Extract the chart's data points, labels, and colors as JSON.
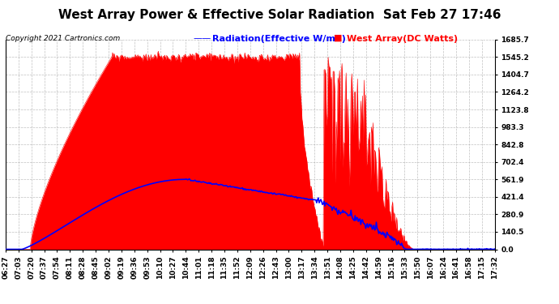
{
  "title": "West Array Power & Effective Solar Radiation  Sat Feb 27 17:46",
  "copyright": "Copyright 2021 Cartronics.com",
  "legend_radiation": "Radiation(Effective W/m2)",
  "legend_west": "West Array(DC Watts)",
  "ylabel_right_ticks": [
    0.0,
    140.5,
    280.9,
    421.4,
    561.9,
    702.4,
    842.8,
    983.3,
    1123.8,
    1264.2,
    1404.7,
    1545.2,
    1685.7
  ],
  "ymax": 1685.7,
  "ymin": 0.0,
  "background_color": "#ffffff",
  "plot_bg_color": "#ffffff",
  "grid_color": "#b0b0b0",
  "red_fill_color": "#ff0000",
  "blue_line_color": "#0000ff",
  "title_color": "#000000",
  "copyright_color": "#000000",
  "xtick_labels": [
    "06:27",
    "07:03",
    "07:20",
    "07:37",
    "07:54",
    "08:11",
    "08:28",
    "08:45",
    "09:02",
    "09:19",
    "09:36",
    "09:53",
    "10:10",
    "10:27",
    "10:44",
    "11:01",
    "11:18",
    "11:35",
    "11:52",
    "12:09",
    "12:26",
    "12:43",
    "13:00",
    "13:17",
    "13:34",
    "13:51",
    "14:08",
    "14:25",
    "14:42",
    "14:59",
    "15:16",
    "15:33",
    "15:50",
    "16:07",
    "16:24",
    "16:41",
    "16:58",
    "17:15",
    "17:32"
  ],
  "n_points": 600,
  "title_fontsize": 11,
  "tick_fontsize": 6.5,
  "legend_fontsize": 8,
  "copyright_fontsize": 6.5
}
